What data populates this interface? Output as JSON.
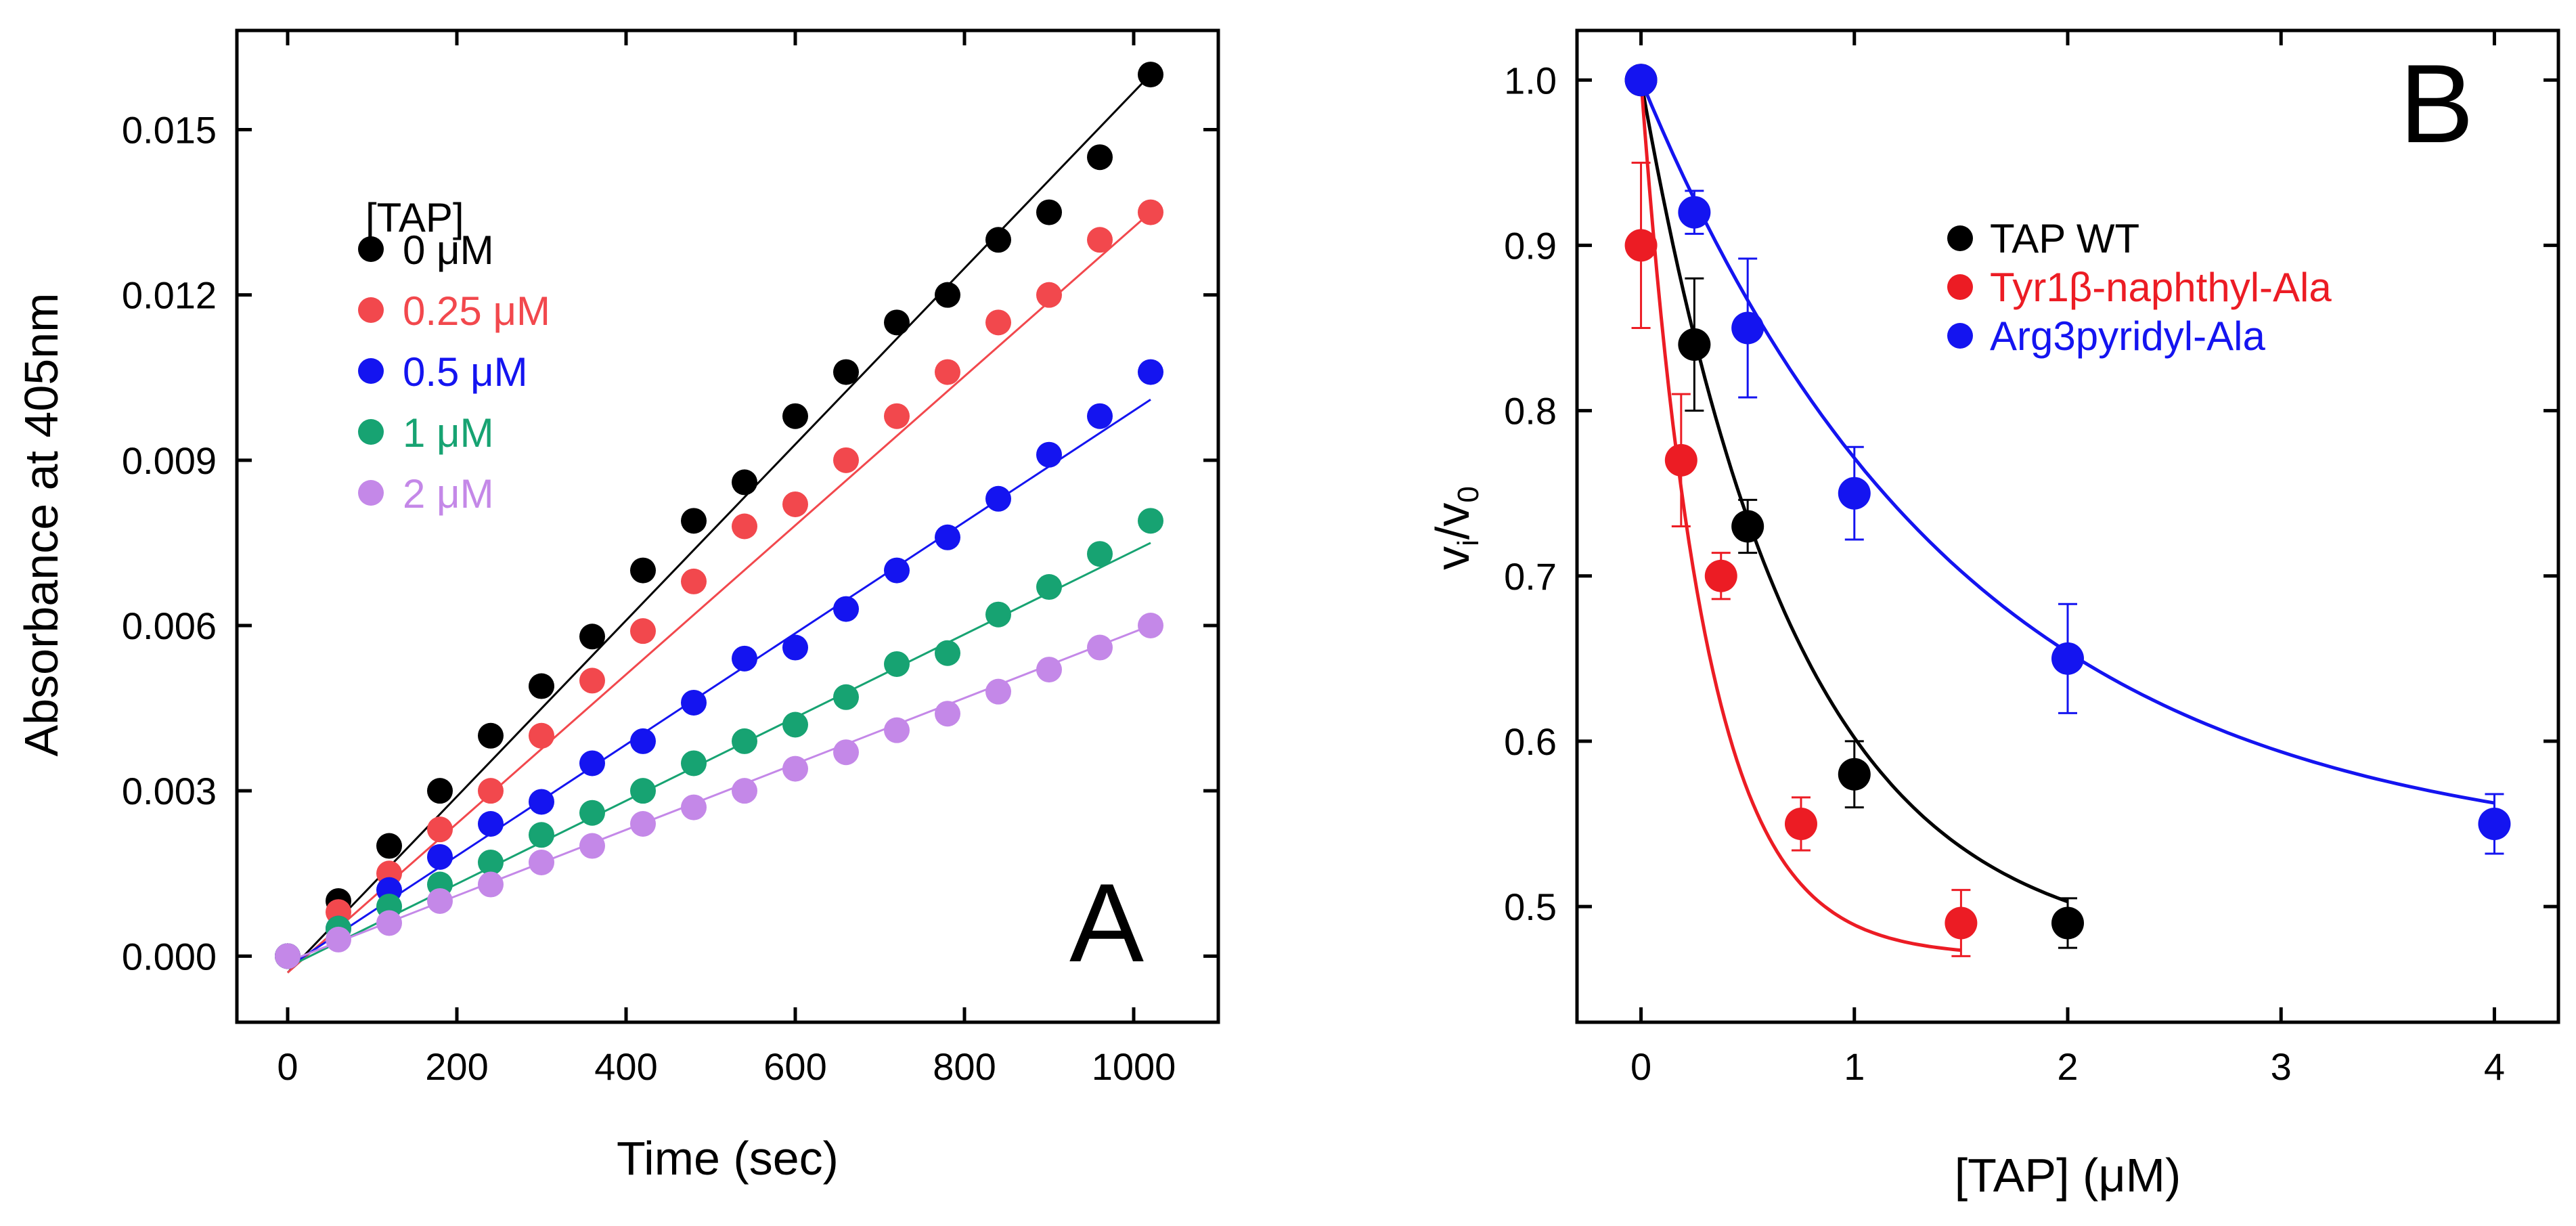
{
  "chart_data": [
    {
      "panel": "A",
      "type": "scatter",
      "panel_label": "A",
      "xlabel": "Time (sec)",
      "ylabel": "Absorbance at 405nm",
      "xlim": [
        -60,
        1100
      ],
      "ylim": [
        -0.0012,
        0.0168
      ],
      "xticks": [
        0,
        200,
        400,
        600,
        800,
        1000
      ],
      "yticks": [
        0.0,
        0.003,
        0.006,
        0.009,
        0.012,
        0.015
      ],
      "ytick_labels": [
        "0.000",
        "0.003",
        "0.006",
        "0.009",
        "0.012",
        "0.015"
      ],
      "legend_title": "[TAP]",
      "x": [
        0,
        60,
        120,
        180,
        240,
        300,
        360,
        420,
        480,
        540,
        600,
        660,
        720,
        780,
        840,
        900,
        960,
        1020
      ],
      "series": [
        {
          "name": "0 μM",
          "color": "#000000",
          "values": [
            0.0,
            0.001,
            0.002,
            0.003,
            0.004,
            0.0049,
            0.0058,
            0.007,
            0.0079,
            0.0086,
            0.0098,
            0.0106,
            0.0115,
            0.012,
            0.013,
            0.0135,
            0.0145,
            0.016
          ],
          "fit": [
            -0.0003,
            0.016
          ]
        },
        {
          "name": "0.25 μM",
          "color": "#f2484d",
          "values": [
            0.0,
            0.0008,
            0.0015,
            0.0023,
            0.003,
            0.004,
            0.005,
            0.0059,
            0.0068,
            0.0078,
            0.0082,
            0.009,
            0.0098,
            0.0106,
            0.0115,
            0.012,
            0.013,
            0.0135
          ],
          "fit": [
            -0.0003,
            0.0135
          ]
        },
        {
          "name": "0.5 μM",
          "color": "#1414f0",
          "values": [
            0.0,
            0.0005,
            0.0012,
            0.0018,
            0.0024,
            0.0028,
            0.0035,
            0.0039,
            0.0046,
            0.0054,
            0.0056,
            0.0063,
            0.007,
            0.0076,
            0.0083,
            0.0091,
            0.0098,
            0.0106
          ],
          "fit": [
            -0.0002,
            0.0101
          ]
        },
        {
          "name": "1 μM",
          "color": "#17a372",
          "values": [
            0.0,
            0.0005,
            0.0009,
            0.0013,
            0.0017,
            0.0022,
            0.0026,
            0.003,
            0.0035,
            0.0039,
            0.0042,
            0.0047,
            0.0053,
            0.0055,
            0.0062,
            0.0067,
            0.0073,
            0.0079
          ],
          "fit": [
            -0.0002,
            0.0075
          ]
        },
        {
          "name": "2 μM",
          "color": "#c488e8",
          "values": [
            0.0,
            0.0003,
            0.0006,
            0.001,
            0.0013,
            0.0017,
            0.002,
            0.0024,
            0.0027,
            0.003,
            0.0034,
            0.0037,
            0.0041,
            0.0044,
            0.0048,
            0.0052,
            0.0056,
            0.006
          ],
          "fit": [
            -0.0001,
            0.006
          ]
        }
      ]
    },
    {
      "panel": "B",
      "type": "scatter",
      "panel_label": "B",
      "xlabel": "[TAP] (μM)",
      "ylabel_main": "v",
      "ylabel_sub1": "i",
      "ylabel_mid": "/v",
      "ylabel_sub2": "0",
      "xlim": [
        -0.3,
        4.3
      ],
      "ylim": [
        0.43,
        1.03
      ],
      "xticks": [
        0,
        1,
        2,
        3,
        4
      ],
      "yticks": [
        0.5,
        0.6,
        0.7,
        0.8,
        0.9,
        1.0
      ],
      "ytick_labels": [
        "0.5",
        "0.6",
        "0.7",
        "0.8",
        "0.9",
        "1.0"
      ],
      "series": [
        {
          "name": "TAP WT",
          "color": "#000000",
          "x": [
            0,
            0.25,
            0.5,
            1.0,
            2.0
          ],
          "values": [
            1.0,
            0.84,
            0.73,
            0.58,
            0.49
          ],
          "err": [
            0.005,
            0.04,
            0.016,
            0.02,
            0.015
          ],
          "fit_tau": 0.72
        },
        {
          "name": "Tyr1β-naphthyl-Ala",
          "color": "#ec1c24",
          "x": [
            0,
            0.188,
            0.375,
            0.75,
            1.5
          ],
          "values": [
            0.9,
            0.77,
            0.7,
            0.55,
            0.49
          ],
          "err": [
            0.05,
            0.04,
            0.014,
            0.016,
            0.02
          ],
          "fit_tau": 0.3
        },
        {
          "name": "Arg3pyridyl-Ala",
          "color": "#1414f0",
          "x": [
            0,
            0.25,
            0.5,
            1.0,
            2.0,
            4.0
          ],
          "values": [
            1.0,
            0.92,
            0.85,
            0.75,
            0.65,
            0.55
          ],
          "err": [
            0.005,
            0.013,
            0.042,
            0.028,
            0.033,
            0.018
          ],
          "fit_tau": 1.5
        }
      ]
    }
  ]
}
